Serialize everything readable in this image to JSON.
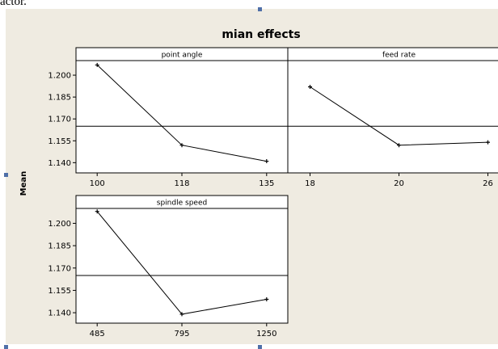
{
  "document_snippet": "actor.",
  "chart_data": {
    "type": "line",
    "title": "mian effects",
    "ylabel": "Mean",
    "ylim": [
      1.133,
      1.21
    ],
    "yticks": [
      1.2,
      1.185,
      1.17,
      1.155,
      1.14
    ],
    "ytick_labels": [
      "1.200",
      "1.185",
      "1.170",
      "1.155",
      "1.140"
    ],
    "reference_line": 1.165,
    "grid": false,
    "panels": [
      {
        "name": "point angle",
        "categories": [
          "100",
          "118",
          "135"
        ],
        "values": [
          1.207,
          1.152,
          1.141
        ]
      },
      {
        "name": "feed rate",
        "categories": [
          "18",
          "20",
          "26"
        ],
        "values": [
          1.192,
          1.152,
          1.154
        ]
      },
      {
        "name": "spindle speed",
        "categories": [
          "485",
          "795",
          "1250"
        ],
        "values": [
          1.208,
          1.139,
          1.149
        ]
      }
    ]
  },
  "colors": {
    "frame_background": "#efebe1",
    "plot_background": "#ffffff",
    "line": "#000000",
    "handle": "#4f6fa8"
  }
}
